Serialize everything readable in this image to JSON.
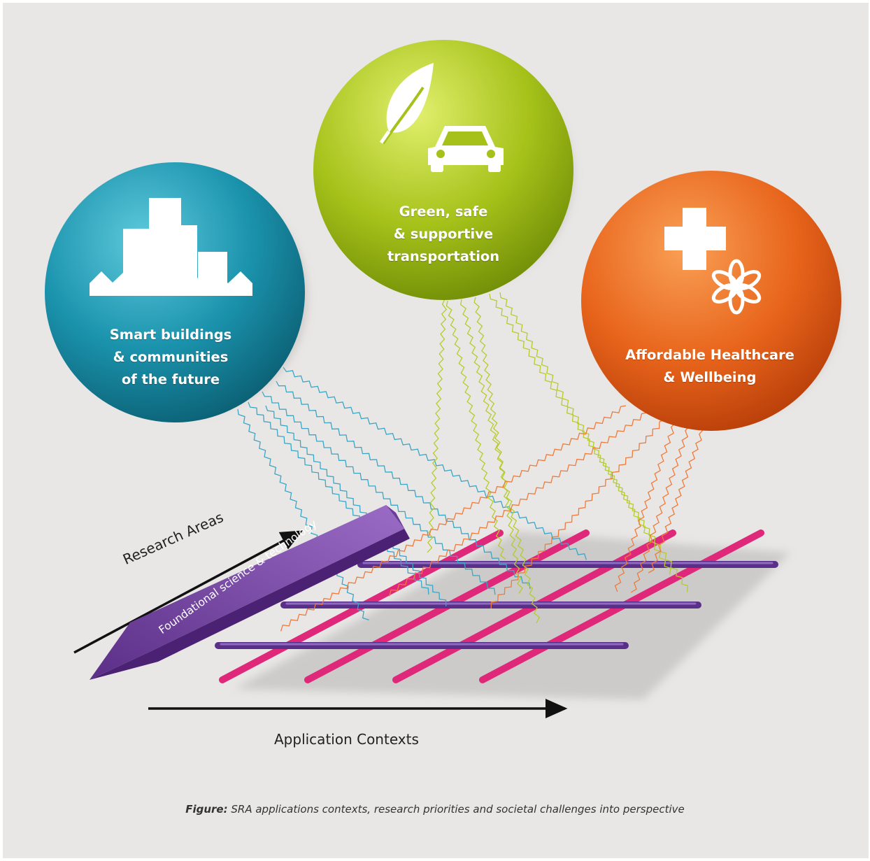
{
  "bubbles": {
    "smart": {
      "label": "Smart buildings\n& communities\nof the future",
      "color": "#1b93ad",
      "icon": "city-buildings-icon"
    },
    "green": {
      "label": "Green, safe\n& supportive\ntransportation",
      "color": "#a6c21a",
      "icon": "leaf-and-car-icon"
    },
    "health": {
      "label": "Affordable Healthcare\n& Wellbeing",
      "color": "#e8641b",
      "icon": "cross-and-flower-icon"
    }
  },
  "axes": {
    "research_areas": "Research Areas",
    "foundational": "Foundational science & technology",
    "application_contexts": "Application Contexts"
  },
  "colors": {
    "background": "#e9e7e5",
    "research_rods": "#e0287a",
    "application_rods": "#5a2f8a",
    "foundational_bar": "#7b4aa5"
  },
  "caption": {
    "prefix": "Figure:",
    "text": " SRA applications contexts, research priorities and societal challenges into perspective"
  }
}
